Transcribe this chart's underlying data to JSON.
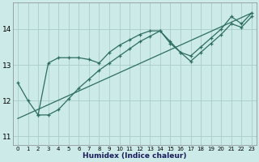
{
  "xlabel": "Humidex (Indice chaleur)",
  "bg_color": "#cceae8",
  "grid_color": "#aacccc",
  "line_color": "#2d6e60",
  "xlim": [
    -0.5,
    23.5
  ],
  "ylim": [
    10.75,
    14.75
  ],
  "yticks": [
    11,
    12,
    13,
    14
  ],
  "xticks": [
    0,
    1,
    2,
    3,
    4,
    5,
    6,
    7,
    8,
    9,
    10,
    11,
    12,
    13,
    14,
    15,
    16,
    17,
    18,
    19,
    20,
    21,
    22,
    23
  ],
  "series1_x": [
    0,
    1,
    2,
    3,
    4,
    5,
    6,
    7,
    8,
    9,
    10,
    11,
    12,
    13,
    14,
    15,
    16,
    17,
    18,
    19,
    20,
    21,
    22,
    23
  ],
  "series1_y": [
    12.5,
    12.0,
    11.6,
    13.05,
    13.2,
    13.2,
    13.2,
    13.15,
    13.05,
    13.35,
    13.55,
    13.7,
    13.85,
    13.95,
    13.95,
    13.6,
    13.35,
    13.25,
    13.5,
    13.75,
    14.0,
    14.35,
    14.15,
    14.45
  ],
  "series2_x": [
    2,
    3,
    4,
    5,
    6,
    7,
    8,
    9,
    10,
    11,
    12,
    13,
    14,
    15,
    16,
    17,
    18,
    19,
    20,
    21,
    22,
    23
  ],
  "series2_y": [
    11.6,
    11.6,
    11.75,
    12.05,
    12.35,
    12.6,
    12.85,
    13.05,
    13.25,
    13.45,
    13.65,
    13.8,
    13.95,
    13.65,
    13.35,
    13.1,
    13.35,
    13.6,
    13.85,
    14.15,
    14.05,
    14.35
  ],
  "series3_x": [
    0,
    23
  ],
  "series3_y": [
    11.5,
    14.45
  ]
}
